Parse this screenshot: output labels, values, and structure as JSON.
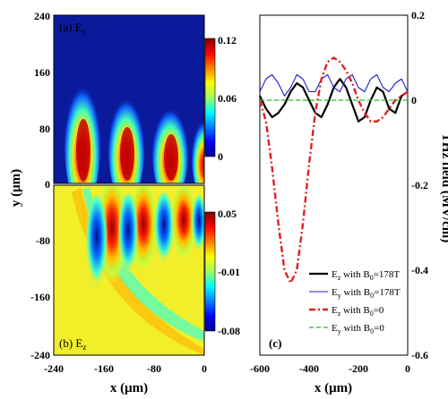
{
  "chart_data": [
    {
      "type": "heatmap",
      "panel_label": "(a) E",
      "panel_sub": "y",
      "ylabel": "y (μm)",
      "yticks": [
        "240",
        "160",
        "80",
        "0"
      ],
      "ylim": [
        0,
        240
      ],
      "xlim": [
        -240,
        0
      ],
      "colorbar": {
        "ticks": [
          "0.12",
          "0.06",
          "0"
        ],
        "range": [
          0,
          0.12
        ]
      }
    },
    {
      "type": "heatmap",
      "panel_label": "(b) E",
      "panel_sub": "z",
      "xlabel": "x (μm)",
      "xticks": [
        "-240",
        "-160",
        "-80",
        "0"
      ],
      "yticks": [
        "-80",
        "-160",
        "-240"
      ],
      "ylim": [
        -240,
        0
      ],
      "xlim": [
        -240,
        0
      ],
      "colorbar": {
        "ticks": [
          "0.05",
          "-0.01",
          "-0.08"
        ],
        "range": [
          -0.08,
          0.05
        ]
      }
    },
    {
      "type": "line",
      "panel_label": "(c)",
      "xlabel": "x (μm)",
      "ylabel": "THz field (MV/cm)",
      "xlim": [
        -600,
        0
      ],
      "ylim": [
        -0.6,
        0.2
      ],
      "xticks": [
        "-600",
        "-400",
        "-200",
        "0"
      ],
      "yticks": [
        "0.2",
        "0",
        "-0.2",
        "-0.4",
        "-0.6"
      ],
      "legend": [
        {
          "t1": "E",
          "sub": "z",
          "t2": " with B",
          "sub2": "0",
          "t3": "=178T",
          "color": "#000000",
          "style": "solid"
        },
        {
          "t1": "E",
          "sub": "y",
          "t2": " with B",
          "sub2": "0",
          "t3": "=178T",
          "color": "#2020d0",
          "style": "solid"
        },
        {
          "t1": "E",
          "sub": "z",
          "t2": " with B",
          "sub2": "0",
          "t3": "=0",
          "color": "#e02020",
          "style": "dashdot"
        },
        {
          "t1": "E",
          "sub": "y",
          "t2": " with B",
          "sub2": "0",
          "t3": "=0",
          "color": "#20c020",
          "style": "dashed"
        }
      ],
      "series": [
        {
          "x": [
            -600,
            -575,
            -550,
            -525,
            -500,
            -475,
            -450,
            -425,
            -400,
            -375,
            -350,
            -325,
            -300,
            -275,
            -250,
            -225,
            -200,
            -175,
            -150,
            -125,
            -100,
            -75,
            -50,
            -25,
            0
          ],
          "y": [
            0.01,
            -0.02,
            -0.04,
            -0.03,
            -0.01,
            0.02,
            0.04,
            0.03,
            0.0,
            -0.03,
            -0.04,
            -0.01,
            0.03,
            0.05,
            0.03,
            -0.01,
            -0.05,
            -0.04,
            0.0,
            0.03,
            0.02,
            -0.02,
            -0.03,
            0.01,
            0.02
          ]
        },
        {
          "x": [
            -600,
            -575,
            -550,
            -525,
            -500,
            -475,
            -450,
            -425,
            -400,
            -375,
            -350,
            -325,
            -300,
            -275,
            -250,
            -225,
            -200,
            -175,
            -150,
            -125,
            -100,
            -75,
            -50,
            -25,
            0
          ],
          "y": [
            0.02,
            0.05,
            0.06,
            0.04,
            0.01,
            0.03,
            0.06,
            0.05,
            0.02,
            0.02,
            0.05,
            0.06,
            0.03,
            0.02,
            0.05,
            0.06,
            0.03,
            0.02,
            0.05,
            0.06,
            0.03,
            0.02,
            0.04,
            0.05,
            0.02
          ]
        },
        {
          "x": [
            -600,
            -575,
            -550,
            -525,
            -500,
            -475,
            -450,
            -425,
            -400,
            -375,
            -350,
            -325,
            -300,
            -275,
            -250,
            -225,
            -200,
            -175,
            -150,
            -125,
            -100,
            -75,
            -50,
            -25,
            0
          ],
          "y": [
            0.0,
            -0.05,
            -0.16,
            -0.29,
            -0.4,
            -0.43,
            -0.4,
            -0.29,
            -0.15,
            -0.03,
            0.05,
            0.09,
            0.1,
            0.09,
            0.07,
            0.04,
            0.0,
            -0.03,
            -0.05,
            -0.05,
            -0.04,
            -0.02,
            0.0,
            0.01,
            0.02
          ]
        },
        {
          "x": [
            -600,
            -500,
            -400,
            -300,
            -200,
            -100,
            0
          ],
          "y": [
            0.0,
            0.0,
            0.0,
            0.0,
            0.0,
            0.0,
            0.0
          ]
        }
      ]
    }
  ]
}
